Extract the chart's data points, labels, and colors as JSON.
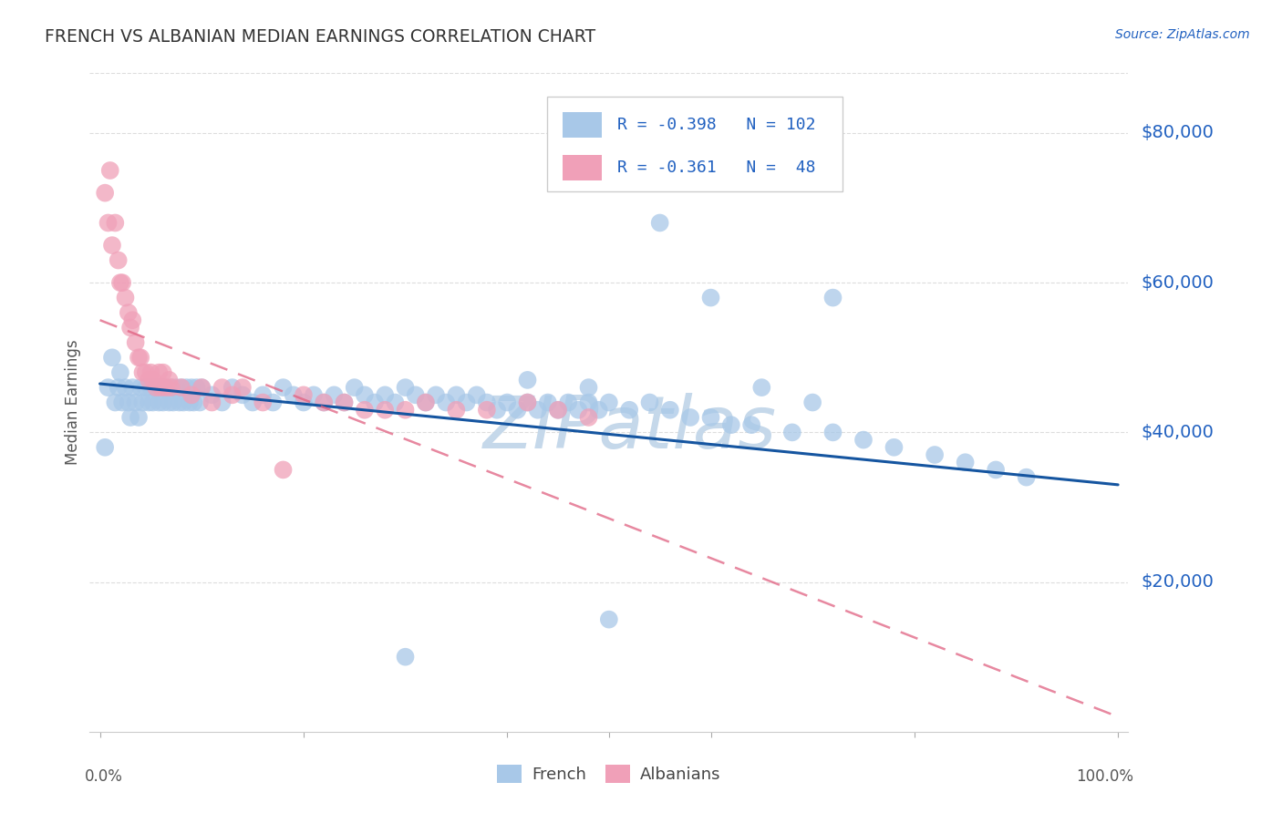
{
  "title": "FRENCH VS ALBANIAN MEDIAN EARNINGS CORRELATION CHART",
  "source": "Source: ZipAtlas.com",
  "ylabel": "Median Earnings",
  "y_ticks": [
    20000,
    40000,
    60000,
    80000
  ],
  "y_tick_labels": [
    "$20,000",
    "$40,000",
    "$60,000",
    "$80,000"
  ],
  "ylim": [
    0,
    88000
  ],
  "xlim": [
    -0.01,
    1.01
  ],
  "french_color": "#a8c8e8",
  "albanian_color": "#f0a0b8",
  "french_line_color": "#1555a0",
  "albanian_line_color": "#e06080",
  "watermark_color": "#c5d8ea",
  "tick_color": "#888888",
  "grid_color": "#dddddd",
  "label_blue": "#2060c0",
  "legend_french_r": "-0.398",
  "legend_french_n": "102",
  "legend_albanian_r": "-0.361",
  "legend_albanian_n": "48",
  "french_line_x0": 0.0,
  "french_line_y0": 46500,
  "french_line_x1": 1.0,
  "french_line_y1": 33000,
  "albanian_line_x0": 0.0,
  "albanian_line_y0": 55000,
  "albanian_line_x1": 1.0,
  "albanian_line_y1": 2000,
  "french_x": [
    0.005,
    0.008,
    0.012,
    0.015,
    0.018,
    0.02,
    0.022,
    0.025,
    0.028,
    0.03,
    0.032,
    0.035,
    0.038,
    0.04,
    0.042,
    0.045,
    0.048,
    0.05,
    0.052,
    0.055,
    0.058,
    0.06,
    0.062,
    0.065,
    0.068,
    0.07,
    0.072,
    0.075,
    0.078,
    0.08,
    0.082,
    0.085,
    0.088,
    0.09,
    0.092,
    0.095,
    0.098,
    0.1,
    0.11,
    0.12,
    0.13,
    0.14,
    0.15,
    0.16,
    0.17,
    0.18,
    0.19,
    0.2,
    0.21,
    0.22,
    0.23,
    0.24,
    0.25,
    0.26,
    0.27,
    0.28,
    0.29,
    0.3,
    0.31,
    0.32,
    0.33,
    0.34,
    0.35,
    0.36,
    0.37,
    0.38,
    0.39,
    0.4,
    0.41,
    0.42,
    0.43,
    0.44,
    0.45,
    0.46,
    0.47,
    0.48,
    0.49,
    0.5,
    0.52,
    0.54,
    0.56,
    0.58,
    0.6,
    0.62,
    0.64,
    0.68,
    0.72,
    0.75,
    0.78,
    0.82,
    0.85,
    0.88,
    0.91,
    0.3,
    0.55,
    0.6,
    0.72,
    0.5,
    0.65,
    0.7,
    0.42,
    0.48
  ],
  "french_y": [
    38000,
    46000,
    50000,
    44000,
    46000,
    48000,
    44000,
    46000,
    44000,
    42000,
    46000,
    44000,
    42000,
    46000,
    44000,
    46000,
    44000,
    46000,
    44000,
    46000,
    44000,
    46000,
    44000,
    46000,
    44000,
    46000,
    44000,
    46000,
    44000,
    46000,
    44000,
    46000,
    44000,
    46000,
    44000,
    46000,
    44000,
    46000,
    45000,
    44000,
    46000,
    45000,
    44000,
    45000,
    44000,
    46000,
    45000,
    44000,
    45000,
    44000,
    45000,
    44000,
    46000,
    45000,
    44000,
    45000,
    44000,
    46000,
    45000,
    44000,
    45000,
    44000,
    45000,
    44000,
    45000,
    44000,
    43000,
    44000,
    43000,
    44000,
    43000,
    44000,
    43000,
    44000,
    43000,
    44000,
    43000,
    44000,
    43000,
    44000,
    43000,
    42000,
    42000,
    41000,
    41000,
    40000,
    40000,
    39000,
    38000,
    37000,
    36000,
    35000,
    34000,
    10000,
    68000,
    58000,
    58000,
    15000,
    46000,
    44000,
    47000,
    46000
  ],
  "albanian_x": [
    0.005,
    0.008,
    0.01,
    0.012,
    0.015,
    0.018,
    0.02,
    0.022,
    0.025,
    0.028,
    0.03,
    0.032,
    0.035,
    0.038,
    0.04,
    0.042,
    0.045,
    0.048,
    0.05,
    0.052,
    0.055,
    0.058,
    0.06,
    0.062,
    0.065,
    0.068,
    0.07,
    0.08,
    0.09,
    0.1,
    0.11,
    0.12,
    0.13,
    0.14,
    0.16,
    0.18,
    0.2,
    0.22,
    0.24,
    0.26,
    0.28,
    0.3,
    0.32,
    0.35,
    0.38,
    0.42,
    0.45,
    0.48
  ],
  "albanian_y": [
    72000,
    68000,
    75000,
    65000,
    68000,
    63000,
    60000,
    60000,
    58000,
    56000,
    54000,
    55000,
    52000,
    50000,
    50000,
    48000,
    48000,
    47000,
    48000,
    47000,
    46000,
    48000,
    46000,
    48000,
    46000,
    47000,
    46000,
    46000,
    45000,
    46000,
    44000,
    46000,
    45000,
    46000,
    44000,
    35000,
    45000,
    44000,
    44000,
    43000,
    43000,
    43000,
    44000,
    43000,
    43000,
    44000,
    43000,
    42000
  ]
}
